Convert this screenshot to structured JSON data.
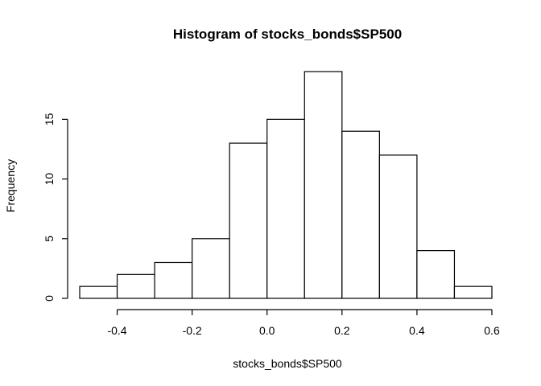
{
  "chart_data": {
    "type": "bar",
    "title": "Histogram of stocks_bonds$SP500",
    "xlabel": "stocks_bonds$SP500",
    "ylabel": "Frequency",
    "bins": [
      {
        "start": -0.5,
        "end": -0.4,
        "count": 1
      },
      {
        "start": -0.4,
        "end": -0.3,
        "count": 2
      },
      {
        "start": -0.3,
        "end": -0.2,
        "count": 3
      },
      {
        "start": -0.2,
        "end": -0.1,
        "count": 5
      },
      {
        "start": -0.1,
        "end": 0.0,
        "count": 13
      },
      {
        "start": 0.0,
        "end": 0.1,
        "count": 15
      },
      {
        "start": 0.1,
        "end": 0.2,
        "count": 19
      },
      {
        "start": 0.2,
        "end": 0.3,
        "count": 14
      },
      {
        "start": 0.3,
        "end": 0.4,
        "count": 12
      },
      {
        "start": 0.4,
        "end": 0.5,
        "count": 4
      },
      {
        "start": 0.5,
        "end": 0.6,
        "count": 1
      }
    ],
    "x_ticks": [
      "-0.4",
      "-0.2",
      "0.0",
      "0.2",
      "0.4",
      "0.6"
    ],
    "x_tick_values": [
      -0.4,
      -0.2,
      0.0,
      0.2,
      0.4,
      0.6
    ],
    "y_ticks": [
      "0",
      "5",
      "10",
      "15"
    ],
    "y_tick_values": [
      0,
      5,
      10,
      15
    ],
    "xlim": [
      -0.5,
      0.6
    ],
    "ylim": [
      0,
      19
    ],
    "grid": false,
    "bar_fill": "#ffffff",
    "bar_stroke": "#000000"
  }
}
